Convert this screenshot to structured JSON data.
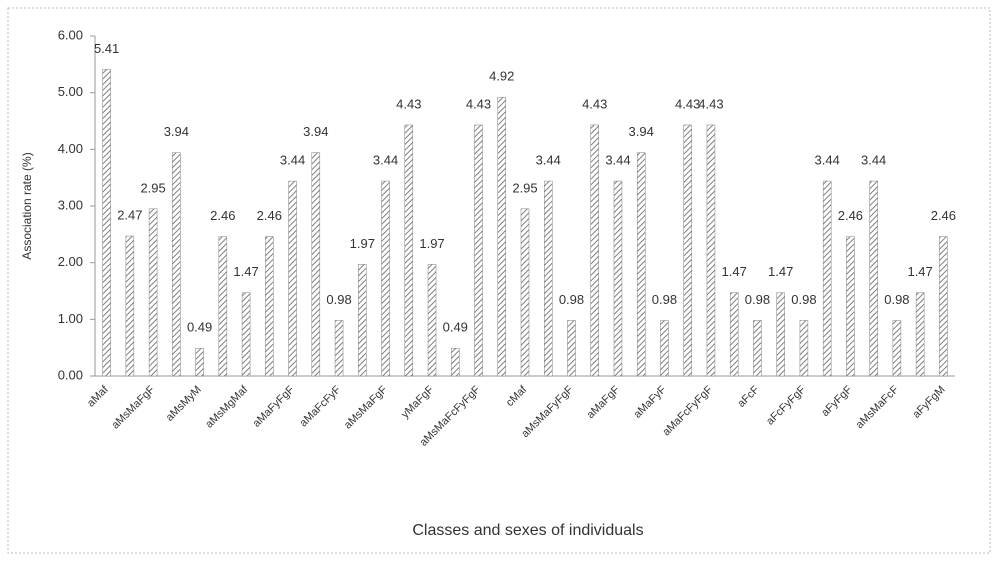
{
  "chart_data": {
    "type": "bar",
    "y_label": "Association rate (%)",
    "x_label": "Classes and sexes of individuals",
    "categories": [
      "aMaf",
      null,
      "aMsMaFgF",
      null,
      "aMsMyM",
      null,
      "aMsMgMaf",
      null,
      "aMaFyFgF",
      null,
      "aMaFcFyF",
      null,
      "aMsMaFgF",
      null,
      "yMaFgF",
      null,
      "aMsMaFcFyFgF",
      null,
      "cMaf",
      null,
      "aMsMaFyFgF",
      null,
      "aMaFgF",
      null,
      "aMaFyF",
      null,
      "aMaFcFyFgF",
      null,
      "aFcF",
      null,
      "aFcFyFgF",
      null,
      "aFyFgF",
      null,
      "aMsMaFcF",
      null,
      "aFyFgM"
    ],
    "values": [
      5.41,
      2.47,
      2.95,
      3.94,
      0.49,
      2.46,
      1.47,
      2.46,
      3.44,
      3.94,
      0.98,
      1.97,
      3.44,
      4.43,
      1.97,
      0.49,
      4.43,
      4.92,
      2.95,
      3.44,
      0.98,
      4.43,
      3.44,
      3.94,
      0.98,
      4.43,
      4.43,
      1.47,
      0.98,
      1.47,
      0.98,
      3.44,
      2.46,
      3.44,
      0.98,
      1.47,
      2.46
    ],
    "color": "#7f7f7f",
    "ylim": [
      0,
      6
    ],
    "yticks": [
      {
        "value": 0,
        "label": "0.00"
      },
      {
        "value": 1,
        "label": "1.00"
      },
      {
        "value": 2,
        "label": "2.00"
      },
      {
        "value": 3,
        "label": "3.00"
      },
      {
        "value": 4,
        "label": "4.00"
      },
      {
        "value": 5,
        "label": "5.00"
      },
      {
        "value": 6,
        "label": "6.00"
      }
    ],
    "grid": false
  }
}
